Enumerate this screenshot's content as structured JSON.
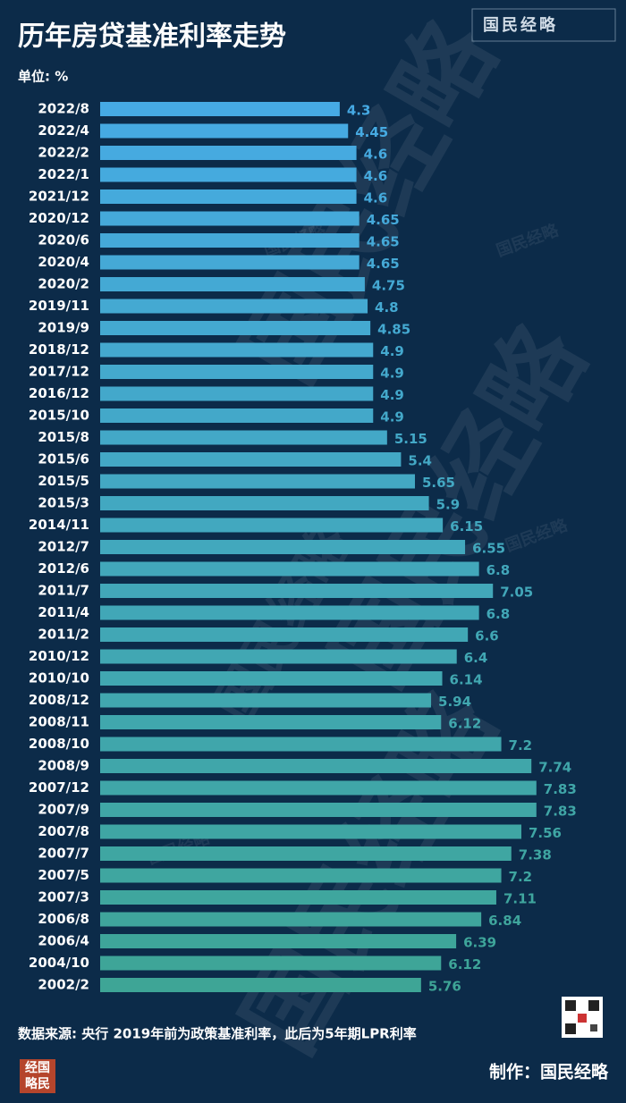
{
  "brand": "国民经略",
  "chart_data": {
    "type": "bar",
    "orientation": "horizontal",
    "title": "历年房贷基准利率走势",
    "unit": "单位: %",
    "categories": [
      "2022/8",
      "2022/4",
      "2022/2",
      "2022/1",
      "2021/12",
      "2020/12",
      "2020/6",
      "2020/4",
      "2020/2",
      "2019/11",
      "2019/9",
      "2018/12",
      "2017/12",
      "2016/12",
      "2015/10",
      "2015/8",
      "2015/6",
      "2015/5",
      "2015/3",
      "2014/11",
      "2012/7",
      "2012/6",
      "2011/7",
      "2011/4",
      "2011/2",
      "2010/12",
      "2010/10",
      "2008/12",
      "2008/11",
      "2008/10",
      "2008/9",
      "2007/12",
      "2007/9",
      "2007/8",
      "2007/7",
      "2007/5",
      "2007/3",
      "2006/8",
      "2006/4",
      "2004/10",
      "2002/2"
    ],
    "values": [
      4.3,
      4.45,
      4.6,
      4.6,
      4.6,
      4.65,
      4.65,
      4.65,
      4.75,
      4.8,
      4.85,
      4.9,
      4.9,
      4.9,
      4.9,
      5.15,
      5.4,
      5.65,
      5.9,
      6.15,
      6.55,
      6.8,
      7.05,
      6.8,
      6.6,
      6.4,
      6.14,
      5.94,
      6.12,
      7.2,
      7.74,
      7.83,
      7.83,
      7.56,
      7.38,
      7.2,
      7.11,
      6.84,
      6.39,
      6.12,
      5.76
    ],
    "color_gradient": [
      "#46aae4",
      "#3ea596"
    ],
    "source": "数据来源: 央行 2019年前为政策基准利率，此后为5年期LPR利率",
    "credit": "制作：国民经略",
    "bottom_logo": [
      "经国",
      "略民"
    ]
  }
}
